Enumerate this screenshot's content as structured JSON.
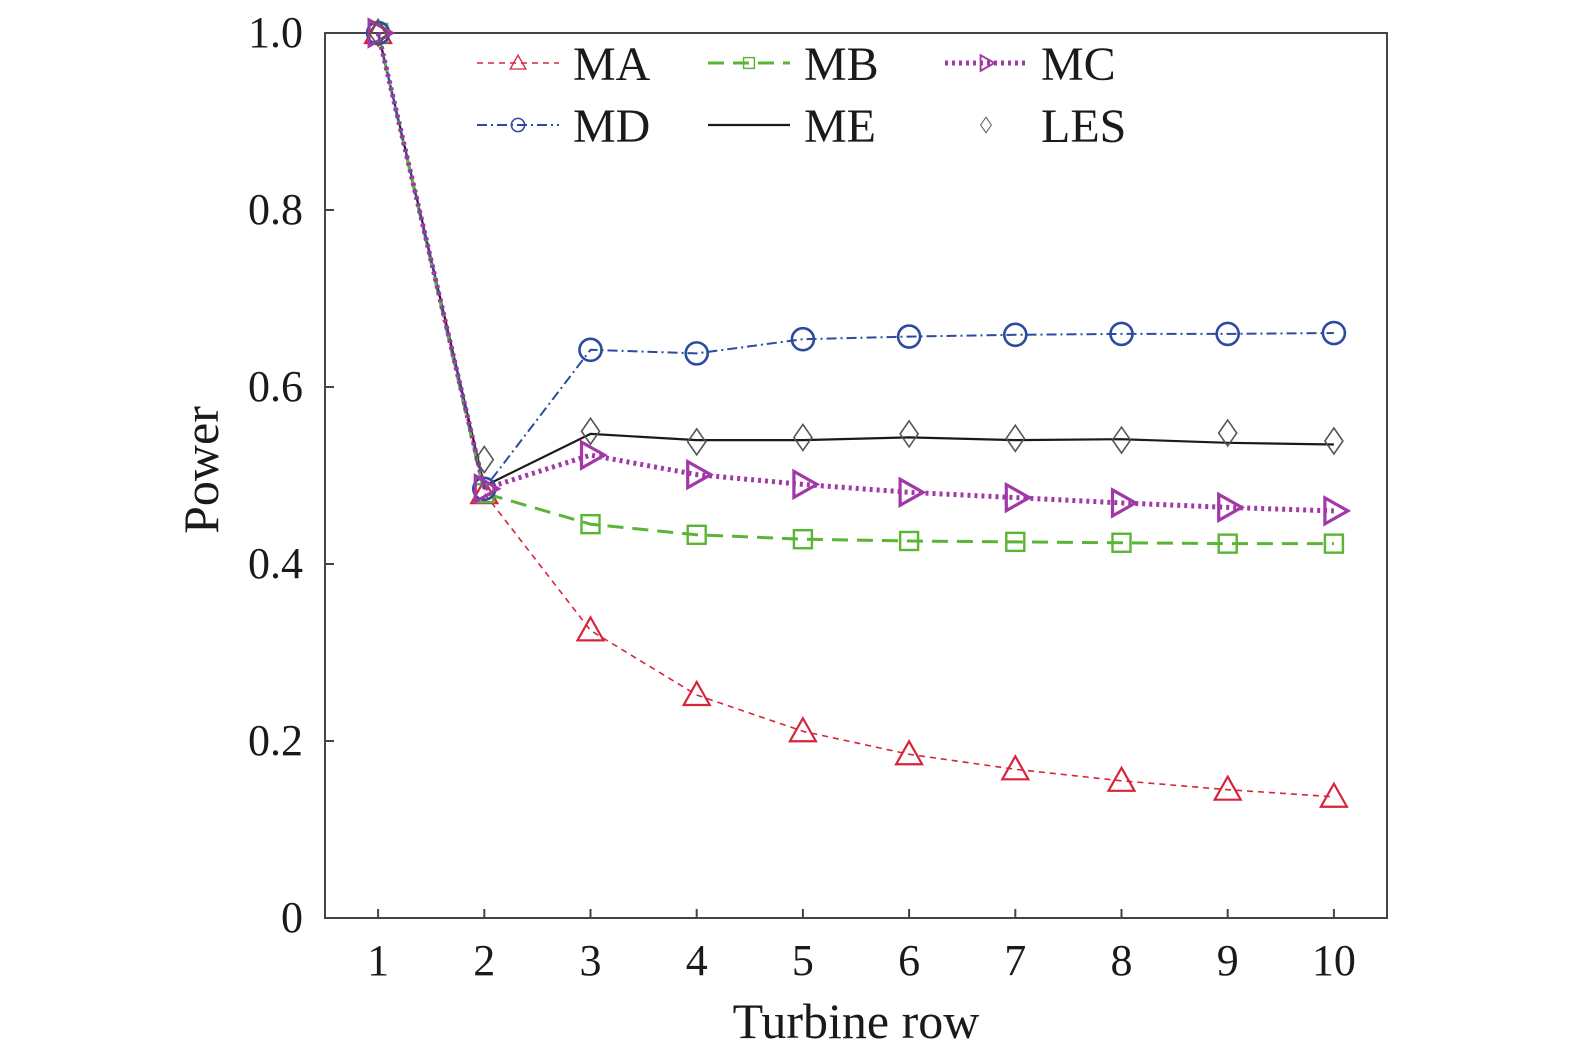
{
  "chart_data": {
    "type": "line",
    "title": "",
    "xlabel": "Turbine row",
    "ylabel": "Power",
    "xlim": [
      0.5,
      10.5
    ],
    "ylim": [
      0,
      1.0
    ],
    "xticks": [
      1,
      2,
      3,
      4,
      5,
      6,
      7,
      8,
      9,
      10
    ],
    "xtick_labels": [
      "1",
      "2",
      "3",
      "4",
      "5",
      "6",
      "7",
      "8",
      "9",
      "10"
    ],
    "yticks": [
      0,
      0.2,
      0.4,
      0.6,
      0.8,
      1.0
    ],
    "ytick_labels": [
      "0",
      "0.2",
      "0.4",
      "0.6",
      "0.8",
      "1.0"
    ],
    "grid": false,
    "legend_position": "top",
    "x": [
      1,
      2,
      3,
      4,
      5,
      6,
      7,
      8,
      9,
      10
    ],
    "series": [
      {
        "name": "MA",
        "color": "#d6253a",
        "marker": "triangle",
        "line": "dashed-thin",
        "values": [
          1.0,
          0.48,
          0.325,
          0.252,
          0.211,
          0.185,
          0.168,
          0.155,
          0.145,
          0.137
        ]
      },
      {
        "name": "MB",
        "color": "#5ab535",
        "marker": "square",
        "line": "dashed",
        "values": [
          1.0,
          0.48,
          0.445,
          0.433,
          0.428,
          0.426,
          0.425,
          0.424,
          0.423,
          0.423
        ]
      },
      {
        "name": "MC",
        "color": "#a238a8",
        "marker": "triangle-right",
        "line": "dotted",
        "values": [
          1.0,
          0.485,
          0.523,
          0.501,
          0.49,
          0.481,
          0.475,
          0.469,
          0.464,
          0.46
        ]
      },
      {
        "name": "MD",
        "color": "#2c4aa0",
        "marker": "circle",
        "line": "dashdot",
        "values": [
          1.0,
          0.485,
          0.642,
          0.638,
          0.654,
          0.657,
          0.659,
          0.66,
          0.66,
          0.661
        ]
      },
      {
        "name": "ME",
        "color": "#1a1a1a",
        "marker": "none",
        "line": "solid",
        "values": [
          1.0,
          0.488,
          0.547,
          0.54,
          0.54,
          0.543,
          0.54,
          0.541,
          0.537,
          0.535
        ]
      },
      {
        "name": "LES",
        "color": "#555555",
        "marker": "diamond",
        "line": "none",
        "values": [
          1.0,
          0.518,
          0.55,
          0.538,
          0.543,
          0.547,
          0.542,
          0.54,
          0.548,
          0.539
        ]
      }
    ]
  }
}
